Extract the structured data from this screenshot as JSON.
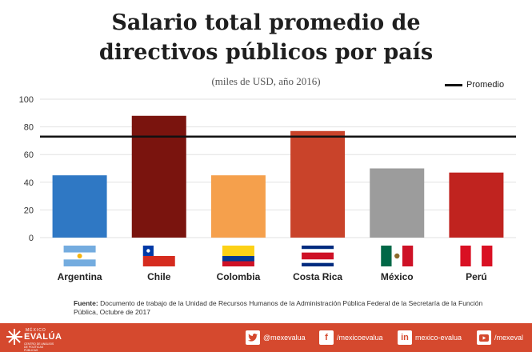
{
  "chart_data": {
    "type": "bar",
    "title_line1": "Salario total promedio de",
    "title_line2": "directivos públicos por país",
    "subtitle": "(miles de USD, año 2016)",
    "xlabel": "",
    "ylabel": "",
    "categories": [
      "Argentina",
      "Chile",
      "Colombia",
      "Costa Rica",
      "México",
      "Perú"
    ],
    "values": [
      45,
      88,
      45,
      77,
      50,
      47
    ],
    "colors": [
      "#2f78c4",
      "#7a140e",
      "#f5a04c",
      "#c9432a",
      "#9c9c9c",
      "#c0231f"
    ],
    "ylim": [
      0,
      100
    ],
    "yticks": [
      0,
      20,
      40,
      60,
      80,
      100
    ],
    "grid": true,
    "reference_line": {
      "label": "Promedio",
      "value": 73,
      "color": "#111111"
    },
    "legend_position": "top-right"
  },
  "source": {
    "label": "Fuente:",
    "text": "Documento de trabajo de la Unidad de Recursos Humanos de la Administración Pública Federal de la Secretaría de la Función Pública, Octubre de 2017"
  },
  "footer": {
    "logo_small": "MÉXICO",
    "logo_main": "EVALÚA",
    "logo_tag": "CENTRO DE ANÁLISIS DE POLÍTICAS PÚBLICAS",
    "twitter": "@mexevalua",
    "facebook": "/mexicoevalua",
    "linkedin": "mexico-evalua",
    "youtube": "/mexeval"
  }
}
